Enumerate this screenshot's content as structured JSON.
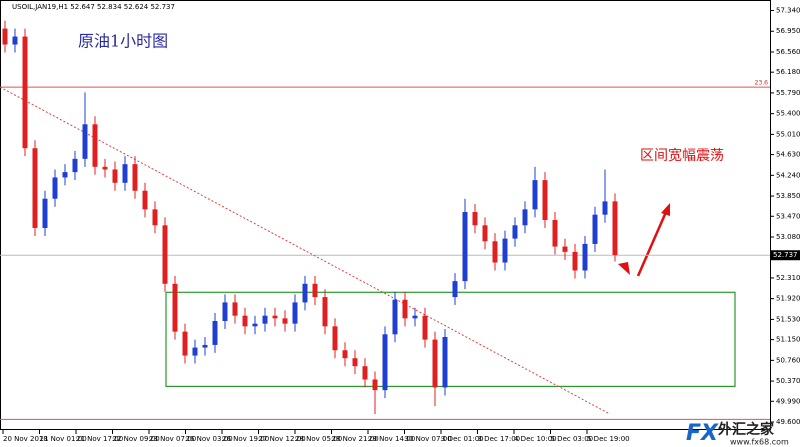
{
  "chart_data": {
    "type": "candlestick",
    "title": "USOIL,JAN19,H1  52.647 52.834 52.624 52.737",
    "annotations": [
      "原油1小时图",
      "区间宽幅震荡"
    ],
    "watermark": [
      "FX",
      "外汇之家",
      "www.fx68.com"
    ],
    "x_labels": [
      "20 Nov 2018",
      "21 Nov 01:00",
      "21 Nov 17:00",
      "22 Nov 09:00",
      "23 Nov 07:00",
      "26 Nov 03:00",
      "26 Nov 19:00",
      "27 Nov 12:00",
      "28 Nov 05:00",
      "28 Nov 21:00",
      "29 Nov 14:00",
      "30 Nov 07:00",
      "3 Dec 01:00",
      "3 Dec 17:00",
      "4 Dec 10:00",
      "5 Dec 03:00",
      "5 Dec 19:00"
    ],
    "open": [
      57.0,
      56.7,
      56.85,
      54.75,
      53.25,
      53.8,
      54.2,
      54.3,
      54.55,
      55.2,
      54.4,
      54.35,
      54.1,
      54.45,
      53.95,
      53.6,
      53.3,
      52.2,
      51.3,
      50.85,
      51.0,
      51.05,
      51.5,
      51.85,
      51.6,
      51.4,
      51.45,
      51.6,
      51.55,
      51.45,
      51.85,
      52.2,
      51.95,
      51.4,
      50.95,
      50.8,
      50.65,
      50.4,
      50.2,
      51.25,
      51.9,
      51.55,
      51.6,
      51.15,
      50.25,
      51.95,
      52.25,
      53.55,
      53.3,
      53.0,
      52.6,
      53.05,
      53.3,
      53.6,
      54.15,
      53.4,
      52.9,
      52.8,
      52.45,
      52.95,
      53.5,
      53.75
    ],
    "high": [
      57.15,
      57.0,
      57.0,
      54.9,
      53.95,
      54.35,
      54.45,
      54.7,
      55.8,
      55.35,
      54.55,
      54.5,
      54.6,
      54.6,
      54.1,
      53.75,
      53.45,
      52.35,
      51.45,
      51.15,
      51.2,
      51.65,
      52.0,
      52.0,
      51.75,
      51.6,
      51.75,
      51.75,
      51.7,
      52.0,
      52.35,
      52.35,
      52.1,
      51.55,
      51.1,
      50.95,
      50.8,
      50.55,
      51.4,
      52.05,
      52.05,
      51.75,
      51.75,
      51.3,
      51.35,
      52.4,
      53.8,
      53.7,
      53.45,
      53.15,
      53.2,
      53.45,
      53.75,
      54.4,
      54.3,
      53.55,
      53.05,
      52.95,
      53.1,
      53.65,
      54.35,
      53.9
    ],
    "low": [
      56.55,
      56.55,
      54.6,
      53.1,
      53.1,
      53.65,
      54.05,
      54.15,
      54.4,
      54.25,
      54.2,
      53.95,
      53.95,
      53.8,
      53.45,
      53.15,
      52.05,
      51.15,
      50.7,
      50.7,
      50.85,
      50.9,
      51.35,
      51.45,
      51.25,
      51.25,
      51.3,
      51.4,
      51.3,
      51.3,
      51.7,
      51.8,
      51.25,
      50.8,
      50.65,
      50.5,
      50.25,
      49.75,
      50.05,
      51.1,
      51.4,
      51.4,
      51.0,
      49.9,
      50.1,
      51.8,
      52.1,
      53.15,
      52.85,
      52.45,
      52.45,
      52.9,
      53.15,
      53.45,
      53.25,
      52.75,
      52.65,
      52.3,
      52.3,
      52.8,
      53.35,
      52.62
    ],
    "close": [
      56.7,
      56.85,
      54.75,
      53.25,
      53.8,
      54.2,
      54.3,
      54.55,
      55.2,
      54.4,
      54.35,
      54.1,
      54.45,
      53.95,
      53.6,
      53.3,
      52.2,
      51.3,
      50.85,
      51.0,
      51.05,
      51.5,
      51.85,
      51.6,
      51.4,
      51.45,
      51.6,
      51.55,
      51.45,
      51.85,
      52.2,
      51.95,
      51.4,
      50.95,
      50.8,
      50.65,
      50.4,
      50.2,
      51.25,
      51.9,
      51.55,
      51.6,
      51.15,
      50.25,
      51.2,
      52.25,
      53.55,
      53.3,
      53.0,
      52.6,
      53.05,
      53.3,
      53.6,
      54.15,
      53.4,
      52.9,
      52.8,
      52.45,
      52.95,
      53.5,
      53.75,
      52.74
    ],
    "up_color": "#1f3fd0",
    "down_color": "#e02020",
    "ylim": [
      49.45,
      57.5
    ],
    "yticks": [
      {
        "value": 57.34,
        "label": "57.340"
      },
      {
        "value": 56.95,
        "label": "56.950"
      },
      {
        "value": 56.56,
        "label": "56.560"
      },
      {
        "value": 56.18,
        "label": "56.180"
      },
      {
        "value": 55.79,
        "label": "55.790"
      },
      {
        "value": 55.4,
        "label": "55.400"
      },
      {
        "value": 55.01,
        "label": "55.010"
      },
      {
        "value": 54.63,
        "label": "54.630"
      },
      {
        "value": 54.24,
        "label": "54.240"
      },
      {
        "value": 53.85,
        "label": "53.850"
      },
      {
        "value": 53.47,
        "label": "53.470"
      },
      {
        "value": 53.08,
        "label": "53.080"
      },
      {
        "value": 52.69,
        "label": "52.690"
      },
      {
        "value": 52.31,
        "label": "52.310"
      },
      {
        "value": 51.92,
        "label": "51.920"
      },
      {
        "value": 51.53,
        "label": "51.530"
      },
      {
        "value": 51.15,
        "label": "51.150"
      },
      {
        "value": 50.76,
        "label": "50.760"
      },
      {
        "value": 50.37,
        "label": "50.370"
      },
      {
        "value": 49.99,
        "label": "49.990"
      },
      {
        "value": 49.6,
        "label": "49.600"
      }
    ],
    "current_price": {
      "value": 52.737,
      "label": "52.737"
    },
    "fib_level": {
      "value": 55.9,
      "label": "23.6"
    },
    "support_line": 49.65,
    "range_box": {
      "top": 52.04,
      "bottom": 50.27
    },
    "trendline": [
      55.9,
      49.75
    ]
  }
}
